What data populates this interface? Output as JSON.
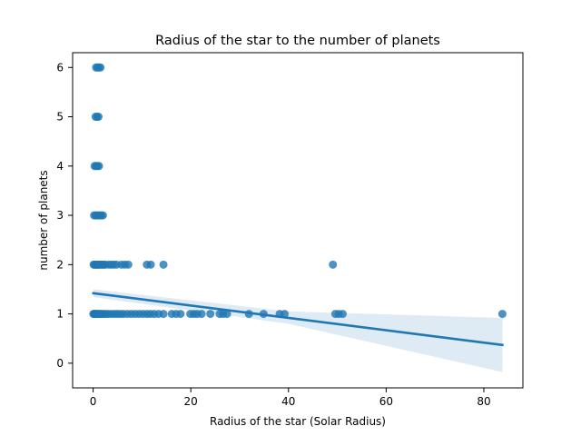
{
  "chart_data": {
    "type": "scatter",
    "title": "Radius of the star to the number of planets",
    "xlabel": "Radius of the star (Solar Radius)",
    "ylabel": "number of planets",
    "xlim": [
      -4.2,
      88
    ],
    "ylim": [
      -0.5,
      6.3
    ],
    "xticks": [
      0,
      20,
      40,
      60,
      80
    ],
    "yticks": [
      0,
      1,
      2,
      3,
      4,
      5,
      6
    ],
    "grid": false,
    "legend": "none",
    "colors": {
      "points": "#1f77b4",
      "line": "#1f77b4",
      "band": "#1f77b4"
    },
    "points": [
      [
        0.6,
        6
      ],
      [
        0.9,
        6
      ],
      [
        1.2,
        6
      ],
      [
        1.5,
        6
      ],
      [
        0.5,
        5
      ],
      [
        0.8,
        5
      ],
      [
        1.1,
        5
      ],
      [
        0.3,
        4
      ],
      [
        0.6,
        4
      ],
      [
        0.9,
        4
      ],
      [
        1.2,
        4
      ],
      [
        0.2,
        3
      ],
      [
        0.5,
        3
      ],
      [
        0.8,
        3
      ],
      [
        1.1,
        3
      ],
      [
        1.4,
        3
      ],
      [
        1.7,
        3
      ],
      [
        2.0,
        3
      ],
      [
        0.1,
        2
      ],
      [
        0.3,
        2
      ],
      [
        0.5,
        2
      ],
      [
        0.7,
        2
      ],
      [
        0.9,
        2
      ],
      [
        1.1,
        2
      ],
      [
        1.3,
        2
      ],
      [
        1.6,
        2
      ],
      [
        1.9,
        2
      ],
      [
        2.2,
        2
      ],
      [
        2.5,
        2
      ],
      [
        3.2,
        2
      ],
      [
        3.7,
        2
      ],
      [
        4.2,
        2
      ],
      [
        4.8,
        2
      ],
      [
        5.8,
        2
      ],
      [
        6.5,
        2
      ],
      [
        7.2,
        2
      ],
      [
        11.0,
        2
      ],
      [
        11.8,
        2
      ],
      [
        14.4,
        2
      ],
      [
        49.1,
        2
      ],
      [
        0.05,
        1
      ],
      [
        0.2,
        1
      ],
      [
        0.35,
        1
      ],
      [
        0.5,
        1
      ],
      [
        0.7,
        1
      ],
      [
        0.9,
        1
      ],
      [
        1.1,
        1
      ],
      [
        1.3,
        1
      ],
      [
        1.6,
        1
      ],
      [
        1.9,
        1
      ],
      [
        2.3,
        1
      ],
      [
        2.7,
        1
      ],
      [
        3.2,
        1
      ],
      [
        3.8,
        1
      ],
      [
        4.4,
        1
      ],
      [
        5.0,
        1
      ],
      [
        5.6,
        1
      ],
      [
        6.2,
        1
      ],
      [
        7.0,
        1
      ],
      [
        7.8,
        1
      ],
      [
        8.6,
        1
      ],
      [
        9.4,
        1
      ],
      [
        10.2,
        1
      ],
      [
        11.0,
        1
      ],
      [
        11.7,
        1
      ],
      [
        12.5,
        1
      ],
      [
        13.4,
        1
      ],
      [
        14.4,
        1
      ],
      [
        16.1,
        1
      ],
      [
        17.0,
        1
      ],
      [
        17.9,
        1
      ],
      [
        19.9,
        1
      ],
      [
        20.6,
        1
      ],
      [
        21.3,
        1
      ],
      [
        22.2,
        1
      ],
      [
        24.0,
        1
      ],
      [
        25.9,
        1
      ],
      [
        26.6,
        1
      ],
      [
        27.4,
        1
      ],
      [
        31.9,
        1
      ],
      [
        34.9,
        1
      ],
      [
        38.2,
        1
      ],
      [
        39.2,
        1
      ],
      [
        49.6,
        1
      ],
      [
        50.3,
        1
      ],
      [
        51.1,
        1
      ],
      [
        83.8,
        1
      ]
    ],
    "regression": {
      "x_start": 0.05,
      "x_end": 83.8,
      "y_start": 1.42,
      "y_end": 0.37,
      "band_lower_start": 1.34,
      "band_upper_start": 1.5,
      "band_lower_end": -0.18,
      "band_upper_end": 0.92,
      "band_knee_x": 40,
      "band_lower_knee": 0.8,
      "band_upper_knee": 1.05
    }
  }
}
